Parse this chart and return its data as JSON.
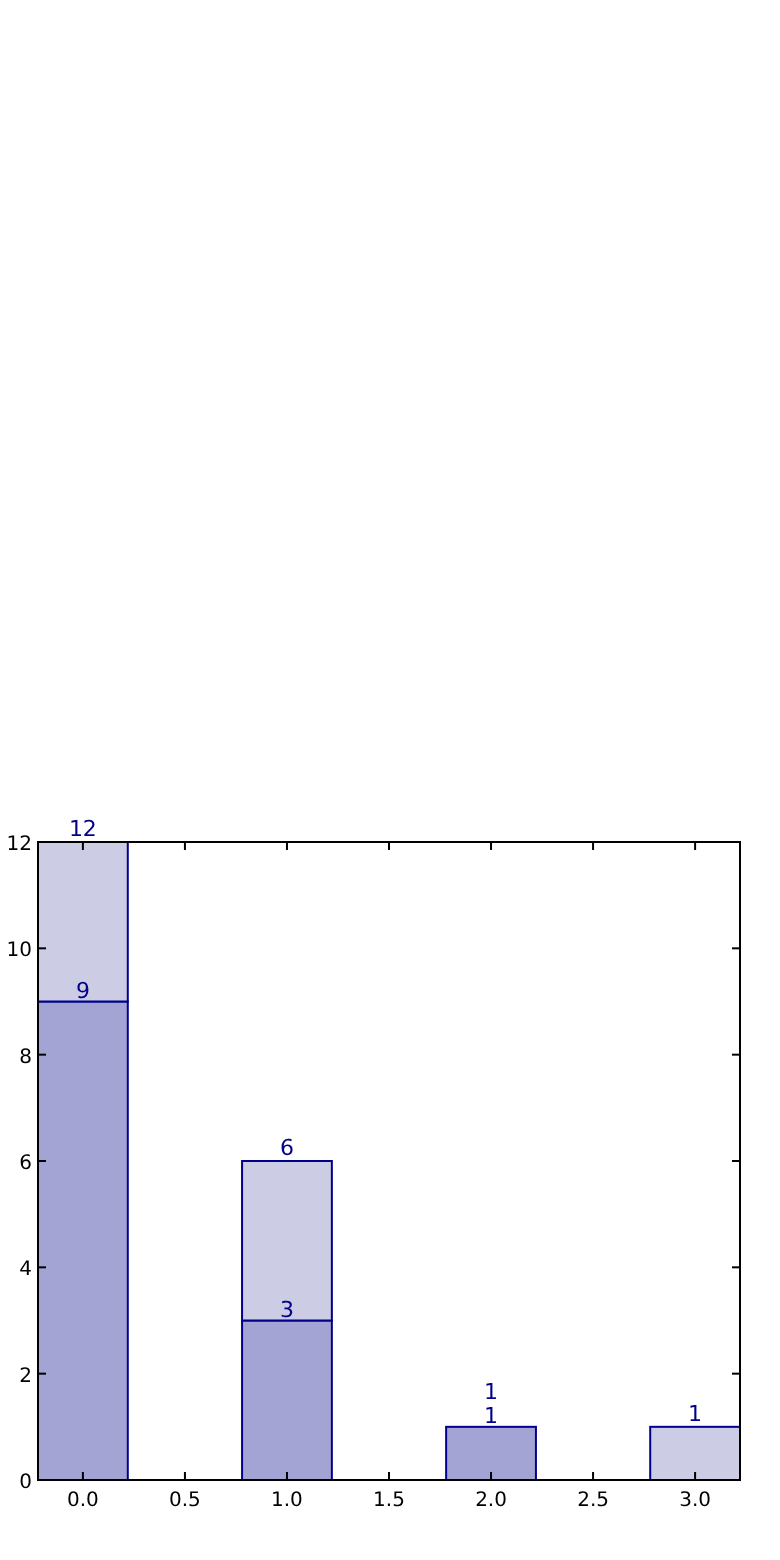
{
  "chart_data": {
    "type": "bar",
    "stacked": true,
    "x": [
      0,
      1,
      2,
      3
    ],
    "series": [
      {
        "color": "#a4a4d4",
        "values": [
          9,
          3,
          1,
          null
        ],
        "value_labels": [
          "9",
          "3",
          "1",
          null
        ]
      },
      {
        "color": "#ccccE4",
        "values": [
          3,
          3,
          null,
          1
        ]
      }
    ],
    "totals": [
      "12",
      "6",
      "1",
      "1"
    ],
    "xlim": [
      -0.22,
      3.22
    ],
    "xticks": [
      {
        "value": 0,
        "label": "0.0"
      },
      {
        "value": 0.5,
        "label": "0.5"
      },
      {
        "value": 1,
        "label": "1.0"
      },
      {
        "value": 1.5,
        "label": "1.5"
      },
      {
        "value": 2,
        "label": "2.0"
      },
      {
        "value": 2.5,
        "label": "2.5"
      },
      {
        "value": 3,
        "label": "3.0"
      }
    ],
    "ylim": [
      0,
      12
    ],
    "yticks": [
      0,
      2,
      4,
      6,
      8,
      10,
      12
    ],
    "grid": false
  }
}
